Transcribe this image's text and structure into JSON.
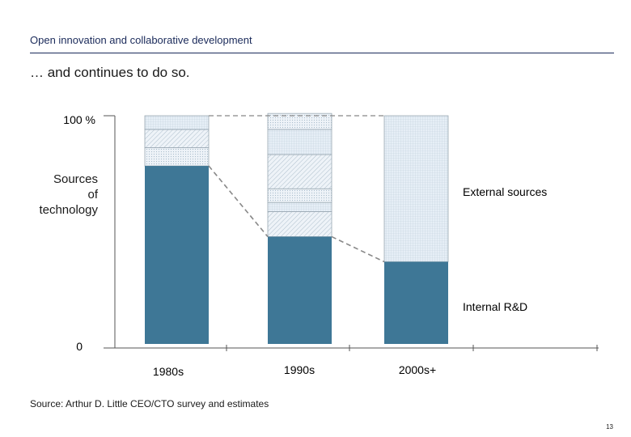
{
  "header": {
    "section_title": "Open innovation and collaborative development",
    "headline": "… and continues to do so."
  },
  "footer": {
    "source": "Source: Arthur D. Little CEO/CTO survey and estimates",
    "page_number": "13"
  },
  "colors": {
    "internal": "#3e7796",
    "external_fill": "#e8f0f7",
    "external_stroke": "#9aa8b2",
    "axis": "#555555",
    "dashed": "#888888"
  },
  "chart_data": {
    "type": "bar",
    "stacked": true,
    "title": "",
    "ylabel": "Sources\nof\ntechnology",
    "xlabel": "",
    "ylim": [
      0,
      100
    ],
    "y_tick_labels": {
      "top": "100 %",
      "bottom": "0"
    },
    "categories": [
      "1980s",
      "1990s",
      "2000s+"
    ],
    "internal_label": "Internal R&D",
    "external_label": "External sources",
    "internal": [
      78,
      47,
      36
    ],
    "external_segments": [
      [
        8,
        8,
        6
      ],
      [
        11,
        4,
        6,
        15,
        11,
        7
      ],
      [
        64
      ]
    ],
    "grid": false
  }
}
